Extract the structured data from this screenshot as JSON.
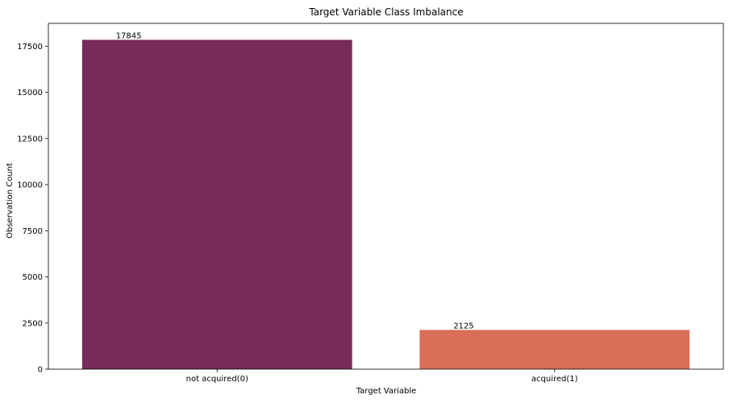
{
  "chart_data": {
    "type": "bar",
    "title": "Target Variable Class Imbalance",
    "xlabel": "Target Variable",
    "ylabel": "Observation Count",
    "categories": [
      "not acquired(0)",
      "acquired(1)"
    ],
    "values": [
      17845,
      2125
    ],
    "data_labels": [
      "17845",
      "2125"
    ],
    "colors": [
      "#772b58",
      "#da6e59"
    ],
    "ylim": [
      0,
      18737
    ],
    "yticks": [
      0,
      2500,
      5000,
      7500,
      10000,
      12500,
      15000,
      17500
    ],
    "ytick_labels": [
      "0",
      "2500",
      "5000",
      "7500",
      "10000",
      "12500",
      "15000",
      "17500"
    ],
    "grid": false,
    "legend": "none"
  }
}
